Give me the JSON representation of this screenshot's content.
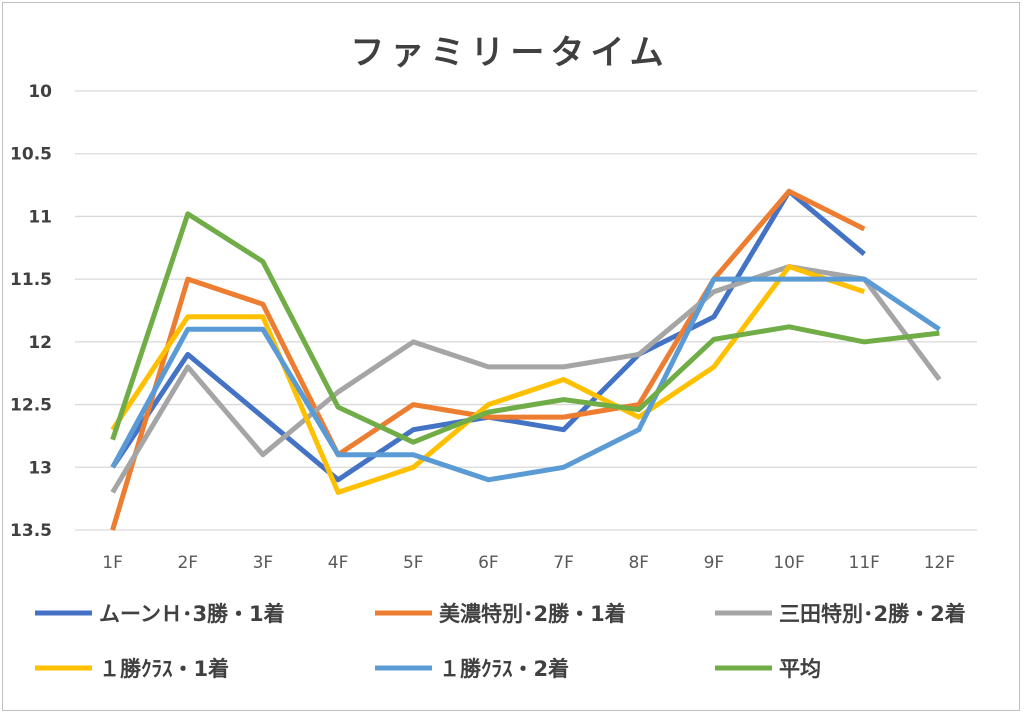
{
  "chart_data": {
    "type": "line",
    "title": "ファミリータイム",
    "xlabel": "",
    "ylabel": "",
    "categories": [
      "1F",
      "2F",
      "3F",
      "4F",
      "5F",
      "6F",
      "7F",
      "8F",
      "9F",
      "10F",
      "11F",
      "12F"
    ],
    "ylim": [
      10,
      13.5
    ],
    "y_reversed": true,
    "y_ticks": [
      "10",
      "10.5",
      "11",
      "11.5",
      "12",
      "12.5",
      "13",
      "13.5"
    ],
    "grid": true,
    "legend_position": "bottom",
    "series": [
      {
        "name": "ムーンＨ･3勝・1着",
        "color": "#4472c4",
        "values": [
          13.0,
          12.1,
          12.6,
          13.1,
          12.7,
          12.6,
          12.7,
          12.1,
          11.8,
          10.8,
          11.3,
          null
        ]
      },
      {
        "name": "美濃特別･2勝・1着",
        "color": "#ed7d31",
        "values": [
          13.5,
          11.5,
          11.7,
          12.9,
          12.5,
          12.6,
          12.6,
          12.5,
          11.5,
          10.8,
          11.1,
          null
        ]
      },
      {
        "name": "三田特別･2勝・2着",
        "color": "#a5a5a5",
        "values": [
          13.2,
          12.2,
          12.9,
          12.4,
          12.0,
          12.2,
          12.2,
          12.1,
          11.6,
          11.4,
          11.5,
          12.3
        ]
      },
      {
        "name": "１勝ｸﾗｽ・1着",
        "color": "#ffc000",
        "values": [
          12.7,
          11.8,
          11.8,
          13.2,
          13.0,
          12.5,
          12.3,
          12.6,
          12.2,
          11.4,
          11.6,
          null
        ]
      },
      {
        "name": "１勝ｸﾗｽ・2着",
        "color": "#5b9bd5",
        "values": [
          13.0,
          11.9,
          11.9,
          12.9,
          12.9,
          13.1,
          13.0,
          12.7,
          11.5,
          11.5,
          11.5,
          11.9
        ]
      },
      {
        "name": "平均",
        "color": "#70ad47",
        "values": [
          12.78,
          10.98,
          11.36,
          12.52,
          12.8,
          12.56,
          12.46,
          12.54,
          11.98,
          11.88,
          12.0,
          11.93
        ]
      }
    ]
  }
}
